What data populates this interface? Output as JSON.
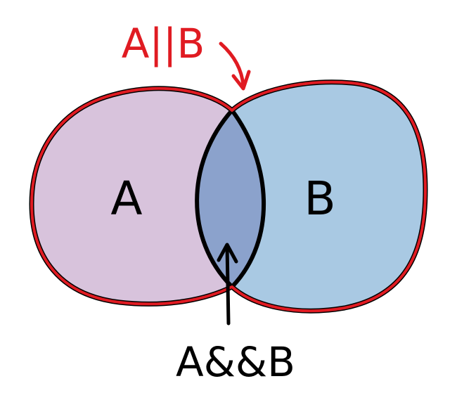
{
  "diagram": {
    "type": "venn",
    "sets": [
      {
        "label": "A",
        "fill": "#d8c3dc"
      },
      {
        "label": "B",
        "fill": "#a9c9e3"
      }
    ],
    "intersection": {
      "fill": "#8ba2cc"
    },
    "union_label": "A||B",
    "intersection_label": "A&&B"
  },
  "colors": {
    "outline": "#000000",
    "union_outline": "#e01b22",
    "union_label": "#e01b22",
    "text": "#000000",
    "background": "#ffffff"
  }
}
